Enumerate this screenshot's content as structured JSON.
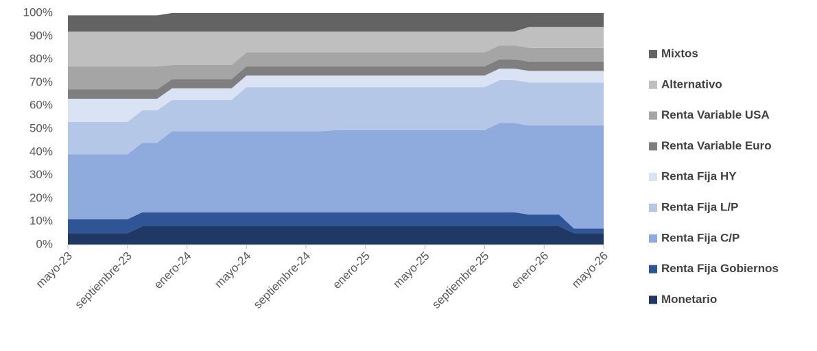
{
  "chart_data": {
    "type": "stacked_area",
    "categories": [
      "mayo-23",
      null,
      null,
      null,
      "septiembre-23",
      null,
      null,
      null,
      "enero-24",
      null,
      null,
      null,
      "mayo-24",
      null,
      null,
      null,
      "septiembre-24",
      null,
      null,
      null,
      "enero-25",
      null,
      null,
      null,
      "mayo-25",
      null,
      null,
      null,
      "septiembre-25",
      null,
      null,
      null,
      "enero-26",
      null,
      null,
      null,
      "mayo-26"
    ],
    "ylim": [
      0,
      100
    ],
    "yticks": [
      {
        "value": 0,
        "label": "0%"
      },
      {
        "value": 10,
        "label": "10%"
      },
      {
        "value": 20,
        "label": "20%"
      },
      {
        "value": 30,
        "label": "30%"
      },
      {
        "value": 40,
        "label": "40%"
      },
      {
        "value": 50,
        "label": "50%"
      },
      {
        "value": 60,
        "label": "60%"
      },
      {
        "value": 70,
        "label": "70%"
      },
      {
        "value": 80,
        "label": "80%"
      },
      {
        "value": 90,
        "label": "90%"
      },
      {
        "value": 100,
        "label": "100%"
      }
    ],
    "legend": "right",
    "series": [
      {
        "name": "Monetario",
        "color": "#203864",
        "values": [
          5,
          5,
          5,
          5,
          5,
          8,
          8,
          8,
          8,
          8,
          8,
          8,
          8,
          8,
          8,
          8,
          8,
          8,
          8,
          8,
          8,
          8,
          8,
          8,
          8,
          8,
          8,
          8,
          8,
          8,
          8,
          8,
          8,
          8,
          5,
          5,
          5
        ]
      },
      {
        "name": "Renta Fija Gobiernos",
        "color": "#2f5597",
        "values": [
          6,
          6,
          6,
          6,
          6,
          6,
          6,
          6,
          6,
          6,
          6,
          6,
          6,
          6,
          6,
          6,
          6,
          6,
          6,
          6,
          6,
          6,
          6,
          6,
          6,
          6,
          6,
          6,
          6,
          6,
          6,
          5,
          5,
          5,
          2,
          2,
          2
        ]
      },
      {
        "name": "Renta Fija C/P",
        "color": "#8faadc",
        "values": [
          28,
          28,
          28,
          28,
          28,
          30,
          30,
          35,
          35,
          35,
          35,
          35,
          35,
          35,
          35,
          35,
          35,
          35,
          35.5,
          35.5,
          35.5,
          35.5,
          35.5,
          35.5,
          35.5,
          35.5,
          35.5,
          35.5,
          35.5,
          38.5,
          38.5,
          38.5,
          38.5,
          38.5,
          44.5,
          44.5,
          44.5
        ]
      },
      {
        "name": "Renta Fija L/P",
        "color": "#b4c7e7",
        "values": [
          14,
          14,
          14,
          14,
          14,
          14,
          14,
          13.5,
          13.5,
          13.5,
          13.5,
          13.5,
          19,
          19,
          19,
          19,
          19,
          19,
          18.5,
          18.5,
          18.5,
          18.5,
          18.5,
          18.5,
          18.5,
          18.5,
          18.5,
          18.5,
          18.5,
          18.5,
          18.5,
          18.5,
          18.5,
          18.5,
          18.5,
          18.5,
          18.5
        ]
      },
      {
        "name": "Renta Fija HY",
        "color": "#dae3f3",
        "values": [
          10,
          10,
          10,
          10,
          10,
          5,
          5,
          5,
          5,
          5,
          5,
          5,
          5,
          5,
          5,
          5,
          5,
          5,
          5,
          5,
          5,
          5,
          5,
          5,
          5,
          5,
          5,
          5,
          5,
          5,
          5,
          5,
          5,
          5,
          5,
          5,
          5
        ]
      },
      {
        "name": "Renta Variable Euro",
        "color": "#7f7f7f",
        "values": [
          4,
          4,
          4,
          4,
          4,
          4,
          4,
          4,
          4,
          4,
          4,
          4,
          4,
          4,
          4,
          4,
          4,
          4,
          4,
          4,
          4,
          4,
          4,
          4,
          4,
          4,
          4,
          4,
          4,
          4,
          4,
          4,
          4,
          4,
          4,
          4,
          4
        ]
      },
      {
        "name": "Renta Variable USA",
        "color": "#a5a5a5",
        "values": [
          10,
          10,
          10,
          10,
          10,
          10,
          10,
          6,
          6,
          6,
          6,
          6,
          6,
          6,
          6,
          6,
          6,
          6,
          6,
          6,
          6,
          6,
          6,
          6,
          6,
          6,
          6,
          6,
          6,
          6,
          6,
          6,
          6,
          6,
          6,
          6,
          6
        ]
      },
      {
        "name": "Alternativo",
        "color": "#bfbfbf",
        "values": [
          15,
          15,
          15,
          15,
          15,
          15,
          15,
          14.5,
          14.5,
          14.5,
          14.5,
          14.5,
          9,
          9,
          9,
          9,
          9,
          9,
          9,
          9,
          9,
          9,
          9,
          9,
          9,
          9,
          9,
          9,
          9,
          6,
          6,
          9,
          9,
          9,
          9,
          9,
          9
        ]
      },
      {
        "name": "Mixtos",
        "color": "#636363",
        "values": [
          7,
          7,
          7,
          7,
          7,
          7,
          7,
          8,
          8,
          8,
          8,
          8,
          8,
          8,
          8,
          8,
          8,
          8,
          8,
          8,
          8,
          8,
          8,
          8,
          8,
          8,
          8,
          8,
          8,
          8,
          8,
          6,
          6,
          6,
          6,
          6,
          6
        ]
      }
    ]
  }
}
